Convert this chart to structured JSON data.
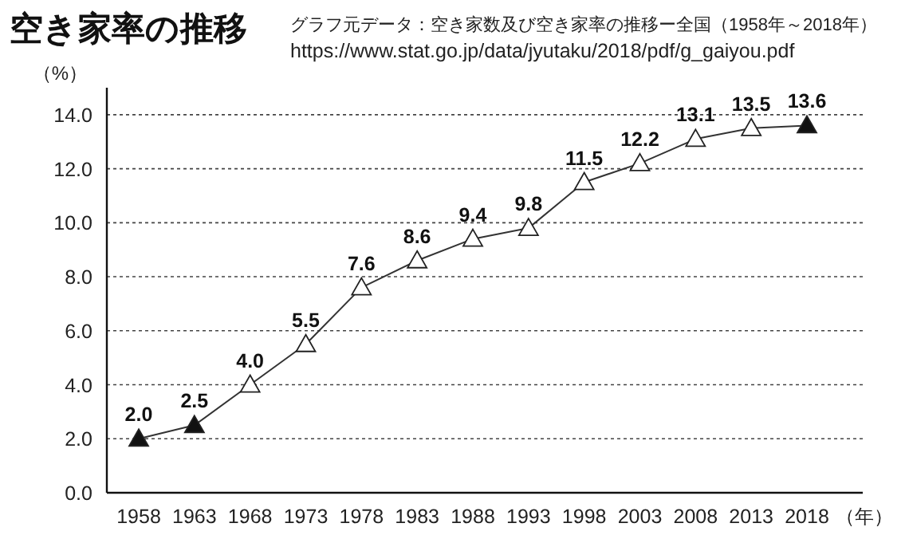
{
  "chart_data": {
    "type": "line",
    "title": "空き家率の推移",
    "annotations": [
      "グラフ元データ：空き家数及び空き家率の推移ー全国（1958年～2018年）",
      "https://www.stat.go.jp/data/jyutaku/2018/pdf/g_gaiyou.pdf"
    ],
    "ylabel": "（%）",
    "xlabel": "（年）",
    "categories": [
      "1958",
      "1963",
      "1968",
      "1973",
      "1978",
      "1983",
      "1988",
      "1993",
      "1998",
      "2003",
      "2008",
      "2013",
      "2018"
    ],
    "series": [
      {
        "color": "#333333",
        "values": [
          2.0,
          2.5,
          4.0,
          5.5,
          7.6,
          8.6,
          9.4,
          9.8,
          11.5,
          12.2,
          13.1,
          13.5,
          13.6
        ],
        "colors": [
          "#111111",
          "#111111",
          "#ffffff",
          "#ffffff",
          "#ffffff",
          "#ffffff",
          "#ffffff",
          "#ffffff",
          "#ffffff",
          "#ffffff",
          "#ffffff",
          "#ffffff",
          "#111111"
        ],
        "value_labels": [
          "2.0",
          "2.5",
          "4.0",
          "5.5",
          "7.6",
          "8.6",
          "9.4",
          "9.8",
          "11.5",
          "12.2",
          "13.1",
          "13.5",
          "13.6"
        ]
      }
    ],
    "ylim": [
      0,
      15
    ],
    "yticks": [
      {
        "value": 0,
        "label": "0.0"
      },
      {
        "value": 2,
        "label": "2.0"
      },
      {
        "value": 4,
        "label": "4.0"
      },
      {
        "value": 6,
        "label": "6.0"
      },
      {
        "value": 8,
        "label": "8.0"
      },
      {
        "value": 10,
        "label": "10.0"
      },
      {
        "value": 12,
        "label": "12.0"
      },
      {
        "value": 14,
        "label": "14.0"
      }
    ],
    "grid": "y",
    "marker": "triangle",
    "line_style": "solid"
  }
}
